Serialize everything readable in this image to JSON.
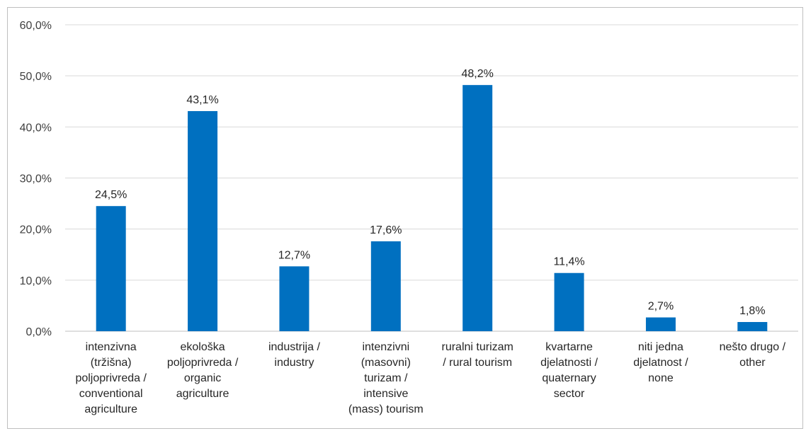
{
  "chart_data": {
    "type": "bar",
    "title": "",
    "xlabel": "",
    "ylabel": "",
    "ylim": [
      0,
      60
    ],
    "yticks": [
      0,
      10,
      20,
      30,
      40,
      50,
      60
    ],
    "ytick_labels": [
      "0,0%",
      "10,0%",
      "20,0%",
      "30,0%",
      "40,0%",
      "50,0%",
      "60,0%"
    ],
    "grid": true,
    "legend": "none",
    "bar_color": "#0070c0",
    "categories": [
      [
        "intenzivna",
        "(tržišna)",
        "poljoprivreda /",
        "conventional",
        "agriculture"
      ],
      [
        "ekološka",
        "poljoprivreda /",
        "organic",
        "agriculture"
      ],
      [
        "industrija /",
        "industry"
      ],
      [
        "intenzivni",
        "(masovni)",
        "turizam /",
        "intensive",
        "(mass) tourism"
      ],
      [
        "ruralni turizam",
        "/ rural tourism"
      ],
      [
        "kvartarne",
        "djelatnosti /",
        "quaternary",
        "sector"
      ],
      [
        "niti jedna",
        "djelatnost /",
        "none"
      ],
      [
        "nešto drugo /",
        "other"
      ]
    ],
    "values": [
      24.5,
      43.1,
      12.7,
      17.6,
      48.2,
      11.4,
      2.7,
      1.8
    ],
    "value_labels": [
      "24,5%",
      "43,1%",
      "12,7%",
      "17,6%",
      "48,2%",
      "11,4%",
      "2,7%",
      "1,8%"
    ]
  }
}
